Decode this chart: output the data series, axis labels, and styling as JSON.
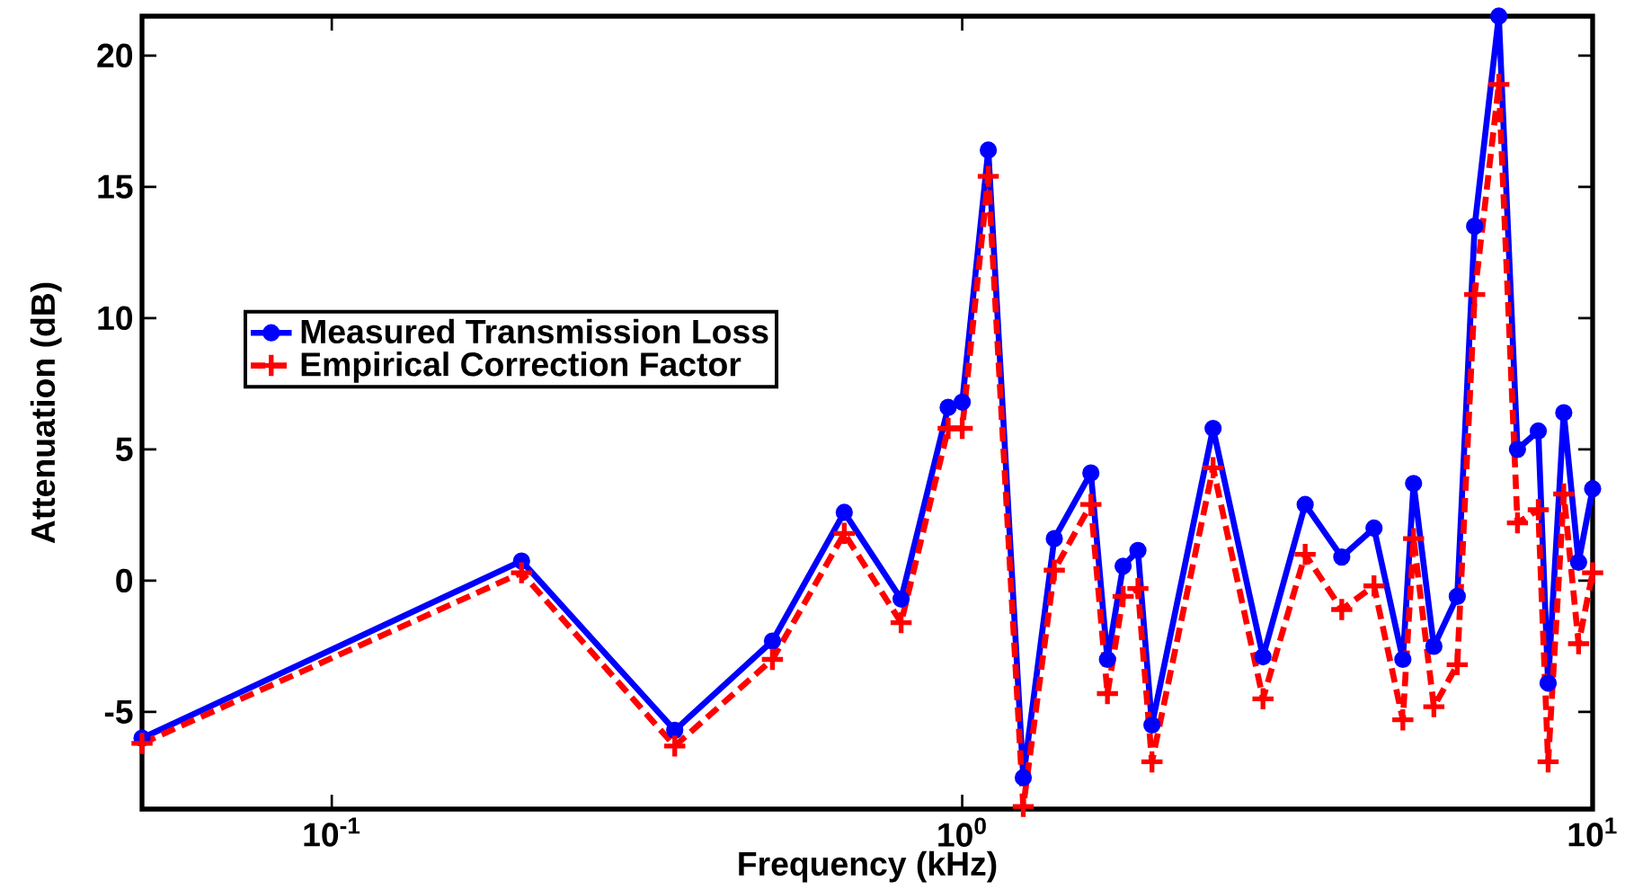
{
  "chart_data": {
    "type": "line",
    "xlabel": "Frequency (kHz)",
    "ylabel": "Attenuation (dB)",
    "log": "x",
    "x": [
      0.05,
      0.2,
      0.35,
      0.5,
      0.65,
      0.8,
      0.95,
      1.0,
      1.1,
      1.25,
      1.4,
      1.6,
      1.7,
      1.8,
      1.9,
      2.0,
      2.5,
      3.0,
      3.5,
      4.0,
      4.5,
      5.0,
      5.2,
      5.6,
      6.1,
      6.5,
      7.1,
      7.6,
      8.2,
      8.5,
      9.0,
      9.5,
      10
    ],
    "series": [
      {
        "name": "Measured Transmission Loss",
        "color": "#0000ff",
        "marker": "circle",
        "line_style": "solid",
        "values": [
          -6.0,
          0.75,
          -5.7,
          -2.3,
          2.6,
          -0.7,
          6.6,
          6.8,
          16.4,
          -7.5,
          1.6,
          4.1,
          -3.0,
          0.55,
          1.15,
          -5.5,
          5.8,
          -2.9,
          2.9,
          0.9,
          2.0,
          -3.0,
          3.7,
          -2.5,
          -0.6,
          13.5,
          21.5,
          5.0,
          5.7,
          -3.9,
          6.4,
          0.7,
          3.5
        ]
      },
      {
        "name": "Empirical Correction Factor",
        "color": "#ff0000",
        "marker": "cross",
        "line_style": "dashed",
        "values": [
          -6.2,
          0.3,
          -6.3,
          -3.0,
          1.8,
          -1.6,
          5.8,
          5.8,
          15.4,
          -8.6,
          0.4,
          2.9,
          -4.3,
          -0.6,
          -0.3,
          -6.9,
          4.3,
          -4.5,
          1.0,
          -1.1,
          -0.2,
          -5.3,
          1.6,
          -4.8,
          -3.2,
          10.9,
          18.9,
          2.2,
          2.7,
          -6.9,
          3.3,
          -2.4,
          0.3
        ]
      }
    ],
    "xlim": [
      0.05,
      10
    ],
    "ylim": [
      -8.7,
      21.5
    ],
    "xticks": [
      {
        "value": 0.1,
        "label": "10$^{-1}$"
      },
      {
        "value": 1,
        "label": "10$^{0}$"
      },
      {
        "value": 10,
        "label": "10$^{1}$"
      }
    ],
    "yticks": [
      -5,
      0,
      5,
      10,
      15,
      20
    ],
    "grid": false,
    "legend": "left"
  }
}
